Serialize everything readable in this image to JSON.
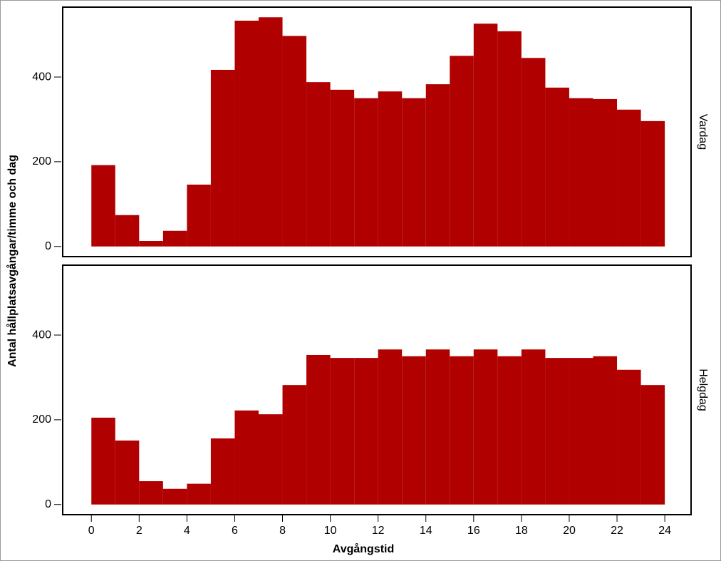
{
  "chart_data": {
    "type": "histogram",
    "x_label": "Avgångstid",
    "y_label": "Antal hållplatsavgångar/timme och dag",
    "color": "#b00000",
    "bins": [
      0,
      1,
      2,
      3,
      4,
      5,
      6,
      7,
      8,
      9,
      10,
      11,
      12,
      13,
      14,
      15,
      16,
      17,
      18,
      19,
      20,
      21,
      22,
      23,
      24
    ],
    "xlim": [
      -1.2,
      25.1
    ],
    "xticks": [
      0,
      2,
      4,
      6,
      8,
      10,
      12,
      14,
      16,
      18,
      20,
      22,
      24
    ],
    "ylim": [
      -24,
      565
    ],
    "yticks": [
      0,
      200,
      400
    ],
    "panels": [
      {
        "name": "Vardag",
        "values": [
          192,
          74,
          13,
          37,
          146,
          417,
          533,
          541,
          497,
          388,
          370,
          350,
          366,
          350,
          383,
          450,
          526,
          508,
          445,
          375,
          350,
          348,
          323,
          296
        ]
      },
      {
        "name": "Helgdag",
        "values": [
          205,
          151,
          55,
          37,
          49,
          156,
          222,
          213,
          282,
          353,
          346,
          346,
          366,
          350,
          366,
          350,
          366,
          350,
          366,
          346,
          346,
          350,
          318,
          282
        ]
      }
    ]
  }
}
